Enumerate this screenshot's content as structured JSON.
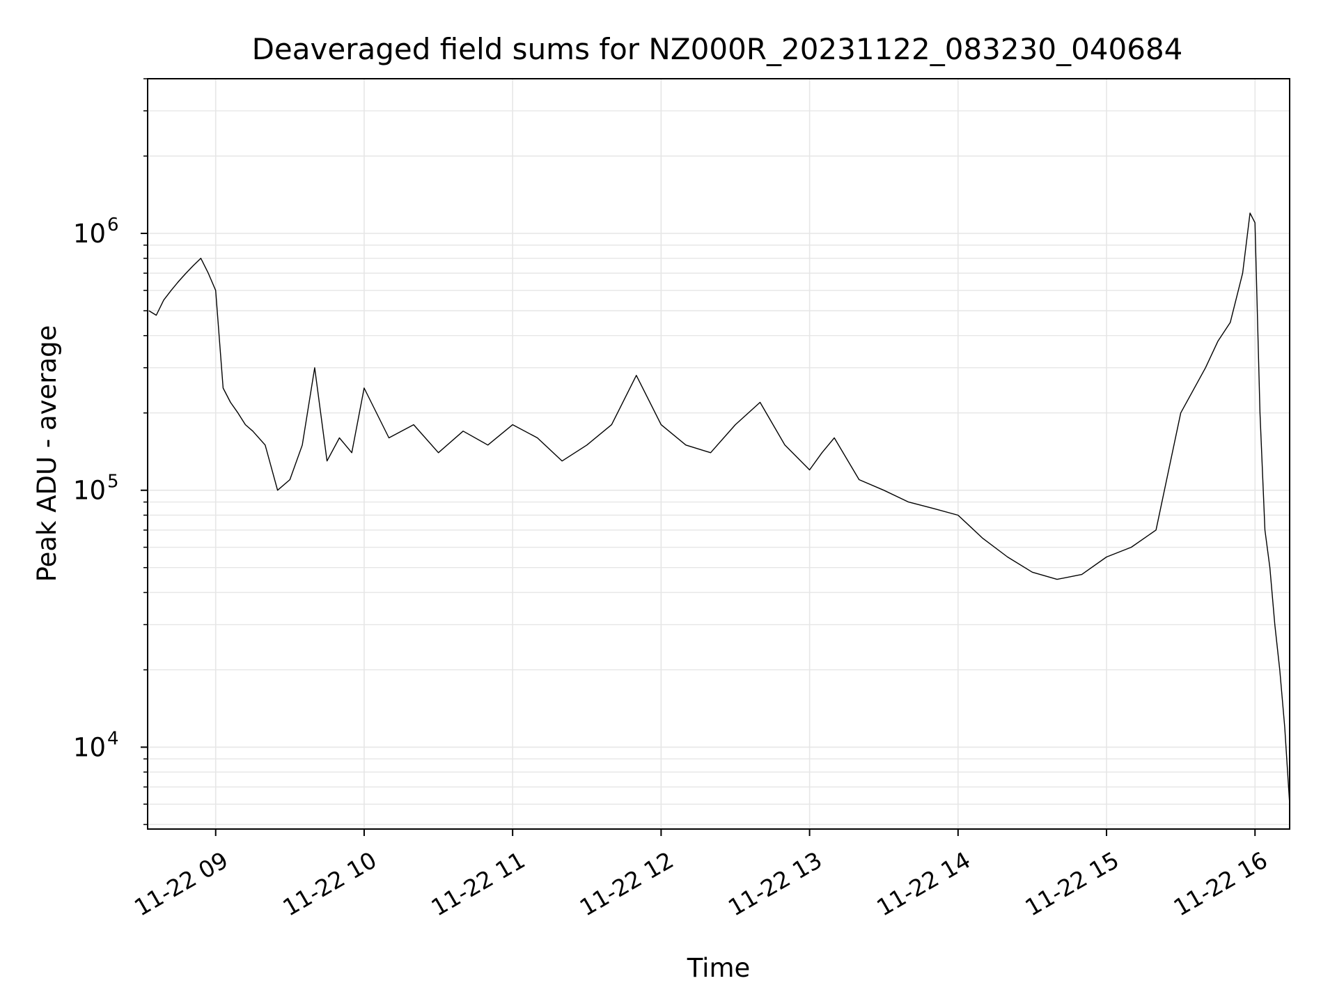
{
  "chart_data": {
    "type": "line",
    "title": "Deaveraged field sums for NZ000R_20231122_083230_040684",
    "xlabel": "Time",
    "ylabel": "Peak ADU - average",
    "x_range": [
      "2023-11-22 08:32:30",
      "2023-11-22 16:14:00"
    ],
    "xtick_labels": [
      "11-22 09",
      "11-22 10",
      "11-22 11",
      "11-22 12",
      "11-22 13",
      "11-22 14",
      "11-22 15",
      "11-22 16"
    ],
    "xtick_hours": [
      9,
      10,
      11,
      12,
      13,
      14,
      15,
      16
    ],
    "yscale": "log",
    "ylim": [
      4800,
      4000000
    ],
    "ytick_labels": [
      {
        "value": 10000,
        "base": "10",
        "exp": "4"
      },
      {
        "value": 100000,
        "base": "10",
        "exp": "5"
      },
      {
        "value": 1000000,
        "base": "10",
        "exp": "6"
      }
    ],
    "grid": true,
    "line_color": "#000000",
    "grid_color": "#e6e6e6",
    "series": [
      {
        "x": [
          "08:33",
          "08:36",
          "08:39",
          "08:42",
          "08:45",
          "08:48",
          "08:51",
          "08:54",
          "08:57",
          "09:00",
          "09:03",
          "09:06",
          "09:09",
          "09:12",
          "09:15",
          "09:20",
          "09:25",
          "09:30",
          "09:35",
          "09:40",
          "09:45",
          "09:50",
          "09:55",
          "10:00",
          "10:10",
          "10:20",
          "10:30",
          "10:40",
          "10:50",
          "11:00",
          "11:10",
          "11:20",
          "11:30",
          "11:40",
          "11:50",
          "12:00",
          "12:10",
          "12:20",
          "12:30",
          "12:40",
          "12:50",
          "13:00",
          "13:05",
          "13:10",
          "13:20",
          "13:30",
          "13:40",
          "13:50",
          "14:00",
          "14:10",
          "14:20",
          "14:30",
          "14:40",
          "14:50",
          "15:00",
          "15:10",
          "15:20",
          "15:30",
          "15:40",
          "15:45",
          "15:50",
          "15:55",
          "15:58",
          "16:00",
          "16:02",
          "16:04",
          "16:06",
          "16:08",
          "16:10",
          "16:12",
          "16:14"
        ],
        "y": [
          500000,
          480000,
          550000,
          600000,
          650000,
          700000,
          750000,
          800000,
          700000,
          600000,
          250000,
          220000,
          200000,
          180000,
          170000,
          150000,
          100000,
          110000,
          150000,
          300000,
          130000,
          160000,
          140000,
          250000,
          160000,
          180000,
          140000,
          170000,
          150000,
          180000,
          160000,
          130000,
          150000,
          180000,
          280000,
          180000,
          150000,
          140000,
          180000,
          220000,
          150000,
          120000,
          140000,
          160000,
          110000,
          100000,
          90000,
          85000,
          80000,
          65000,
          55000,
          48000,
          45000,
          47000,
          55000,
          60000,
          70000,
          200000,
          300000,
          380000,
          450000,
          700000,
          1200000,
          1100000,
          200000,
          70000,
          50000,
          30000,
          20000,
          12000,
          6000
        ]
      }
    ]
  }
}
